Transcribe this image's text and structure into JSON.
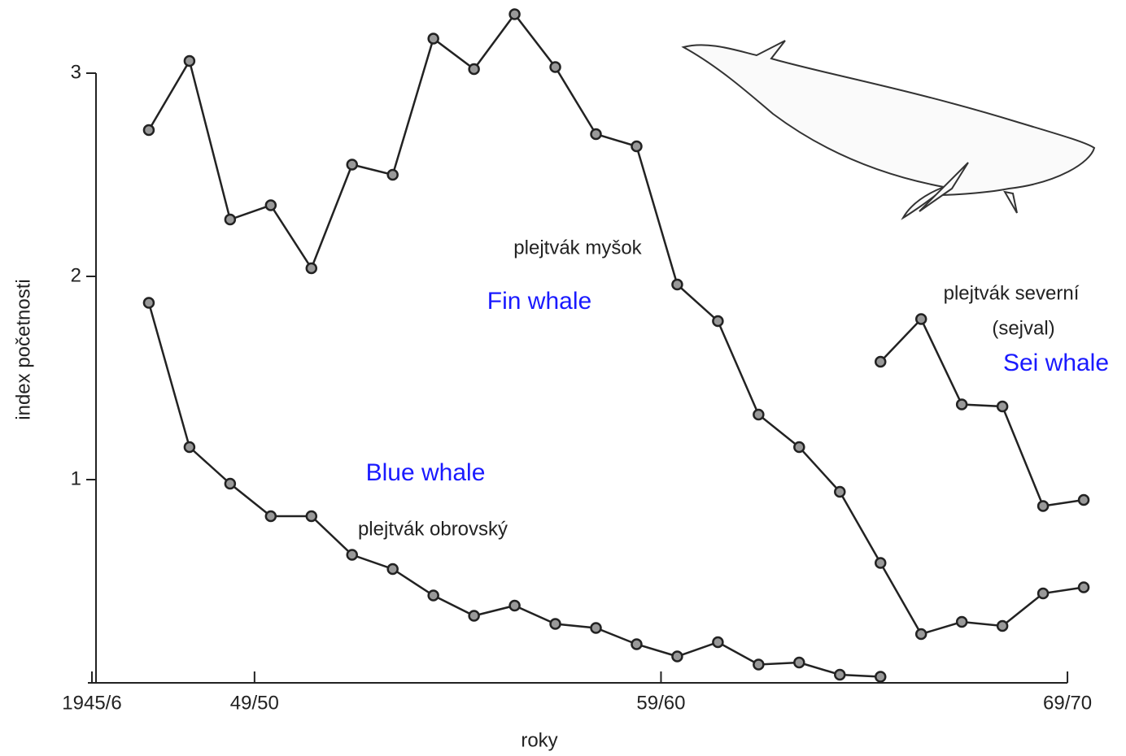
{
  "chart_data": {
    "type": "line",
    "xlabel": "roky",
    "ylabel": "index početnosti",
    "xlim": [
      1944.5,
      1970
    ],
    "ylim": [
      0,
      3.3
    ],
    "xticks": [
      {
        "value": 1944.6,
        "label": "1945/6"
      },
      {
        "value": 1948.6,
        "label": "49/50"
      },
      {
        "value": 1958.6,
        "label": "59/60"
      },
      {
        "value": 1968.6,
        "label": "69/70"
      }
    ],
    "yticks": [
      1,
      2,
      3
    ],
    "grid": false,
    "series": [
      {
        "name": "Fin whale",
        "label": [
          "plejtvák myšok"
        ],
        "color": "#222222",
        "x": [
          1946,
          1947,
          1948,
          1949,
          1950,
          1951,
          1952,
          1953,
          1954,
          1955,
          1956,
          1957,
          1958,
          1959,
          1960,
          1961,
          1962,
          1963,
          1964,
          1965,
          1966,
          1967,
          1968,
          1969
        ],
        "values": [
          2.72,
          3.06,
          2.28,
          2.35,
          2.04,
          2.55,
          2.5,
          3.17,
          3.02,
          3.29,
          3.03,
          2.7,
          2.64,
          1.96,
          1.78,
          1.32,
          1.16,
          0.94,
          0.59,
          0.24,
          0.3,
          0.28,
          0.44,
          0.47
        ]
      },
      {
        "name": "Blue whale",
        "label": [
          "plejtvák obrovský"
        ],
        "color": "#222222",
        "x": [
          1946,
          1947,
          1948,
          1949,
          1950,
          1951,
          1952,
          1953,
          1954,
          1955,
          1956,
          1957,
          1958,
          1959,
          1960,
          1961,
          1962,
          1963,
          1964
        ],
        "values": [
          1.87,
          1.16,
          0.98,
          0.82,
          0.82,
          0.63,
          0.56,
          0.43,
          0.33,
          0.38,
          0.29,
          0.27,
          0.19,
          0.13,
          0.2,
          0.09,
          0.1,
          0.04,
          0.03
        ]
      },
      {
        "name": "Sei whale",
        "label": [
          "plejtvák severní",
          "(sejval)"
        ],
        "color": "#222222",
        "x": [
          1964,
          1965,
          1966,
          1967,
          1968,
          1969
        ],
        "values": [
          1.58,
          1.79,
          1.37,
          1.36,
          0.87,
          0.9
        ]
      }
    ]
  }
}
